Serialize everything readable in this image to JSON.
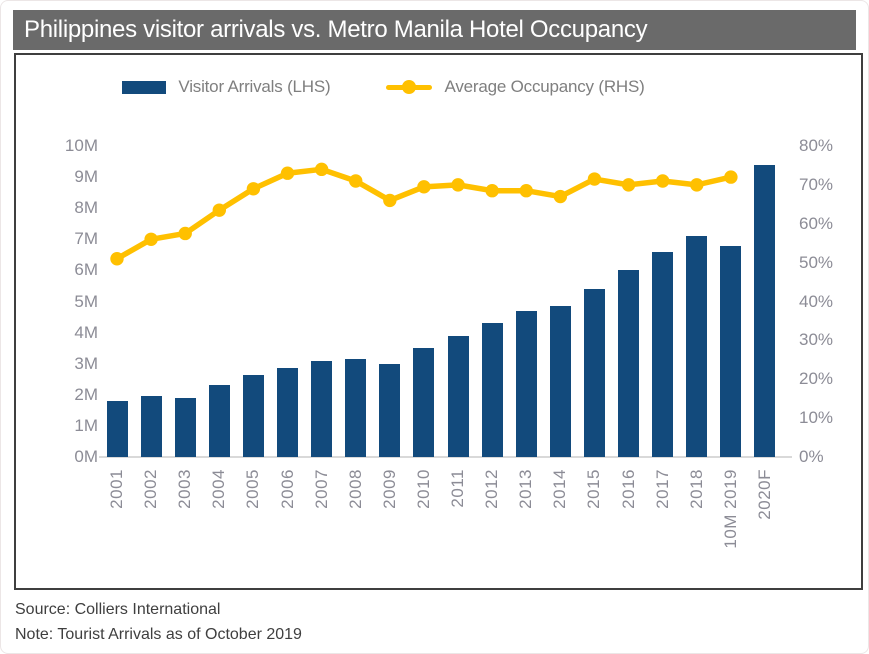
{
  "title": "Philippines visitor arrivals vs. Metro Manila Hotel Occupancy",
  "legend": {
    "bars_label": "Visitor Arrivals (LHS)",
    "line_label": "Average Occupancy (RHS)"
  },
  "footer": {
    "source": "Source: Colliers International",
    "note": "Note: Tourist Arrivals as of October 2019"
  },
  "colors": {
    "bar": "#124a7c",
    "line": "#ffc000",
    "title_bar_bg": "#6a6a6a",
    "axis_text": "#8c8c96",
    "chart_border": "#3f3f3f",
    "baseline": "#d9d9d9"
  },
  "chart_data": {
    "type": "bar",
    "subtype": "bar+line combo, dual axis",
    "title": "Philippines visitor arrivals vs. Metro Manila Hotel Occupancy",
    "categories": [
      "2001",
      "2002",
      "2003",
      "2004",
      "2005",
      "2006",
      "2007",
      "2008",
      "2009",
      "2010",
      "2011",
      "2012",
      "2013",
      "2014",
      "2015",
      "2016",
      "2017",
      "2018",
      "10M 2019",
      "2020F"
    ],
    "series": [
      {
        "name": "Visitor Arrivals (LHS)",
        "type": "bar",
        "axis": "left",
        "unit": "millions",
        "values": [
          1.8,
          1.95,
          1.9,
          2.3,
          2.65,
          2.85,
          3.1,
          3.15,
          3.0,
          3.5,
          3.9,
          4.3,
          4.7,
          4.85,
          5.4,
          6.0,
          6.6,
          7.1,
          6.8,
          9.4
        ]
      },
      {
        "name": "Average Occupancy (RHS)",
        "type": "line",
        "axis": "right",
        "unit": "percent",
        "values": [
          51,
          56,
          57.5,
          63.5,
          69,
          73,
          74,
          71,
          66,
          69.5,
          70,
          68.5,
          68.5,
          67,
          71.5,
          70,
          71,
          70,
          72,
          null
        ]
      }
    ],
    "left_axis": {
      "ticks": [
        "10M",
        "9M",
        "8M",
        "7M",
        "6M",
        "5M",
        "4M",
        "3M",
        "2M",
        "1M",
        "0M"
      ],
      "min": 0,
      "max": 10
    },
    "right_axis": {
      "ticks": [
        "80%",
        "70%",
        "60%",
        "50%",
        "40%",
        "30%",
        "20%",
        "10%",
        "0%"
      ],
      "min": 0,
      "max": 80
    },
    "grid": false,
    "legend_position": "top"
  }
}
